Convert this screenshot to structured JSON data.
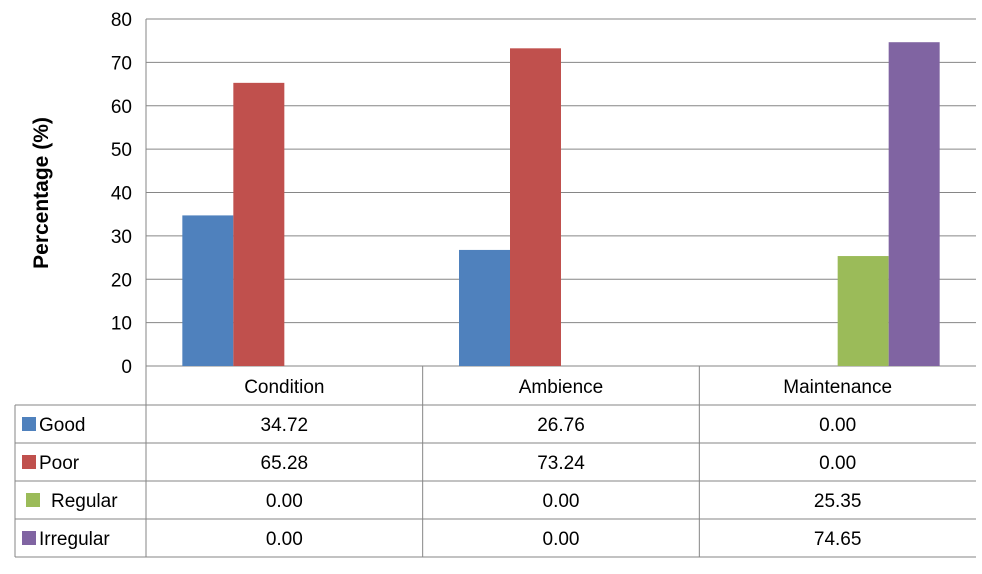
{
  "chart_data": {
    "type": "bar",
    "ylabel": "Percentage (%)",
    "ylim": [
      0,
      80
    ],
    "yticks": [
      "0",
      "10",
      "20",
      "30",
      "40",
      "50",
      "60",
      "70",
      "80"
    ],
    "grid": true,
    "legend": "data-table",
    "categories": [
      "Condition",
      "Ambience",
      "Maintenance"
    ],
    "series": [
      {
        "name": "Good",
        "color": "#4f81bd",
        "values": [
          34.72,
          26.76,
          0.0
        ],
        "labels": [
          "34.72",
          "26.76",
          "0.00"
        ]
      },
      {
        "name": "Poor",
        "color": "#c0504d",
        "values": [
          65.28,
          73.24,
          0.0
        ],
        "labels": [
          "65.28",
          "73.24",
          "0.00"
        ]
      },
      {
        "name": "Regular",
        "color": "#9bbb59",
        "values": [
          0.0,
          0.0,
          25.35
        ],
        "labels": [
          "0.00",
          "0.00",
          "25.35"
        ]
      },
      {
        "name": "Irregular",
        "color": "#8064a2",
        "values": [
          0.0,
          0.0,
          74.65
        ],
        "labels": [
          "0.00",
          "0.00",
          "74.65"
        ]
      }
    ]
  }
}
